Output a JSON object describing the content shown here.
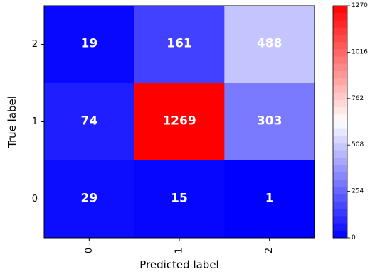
{
  "chart_data": {
    "type": "heatmap",
    "title": "",
    "xlabel": "Predicted label",
    "ylabel": "True label",
    "x_categories": [
      "0",
      "1",
      "2"
    ],
    "y_categories": [
      "2",
      "1",
      "0"
    ],
    "values": [
      [
        19,
        161,
        488
      ],
      [
        74,
        1269,
        303
      ],
      [
        29,
        15,
        1
      ]
    ],
    "colorbar": {
      "range": [
        0,
        1270
      ],
      "ticks": [
        "0",
        "254",
        "508",
        "762",
        "1016",
        "1270"
      ],
      "colormap": "bwr",
      "colors": [
        "#0000ff",
        "#ffffff",
        "#ff0000"
      ]
    },
    "annotation_color": "#ffffff"
  }
}
